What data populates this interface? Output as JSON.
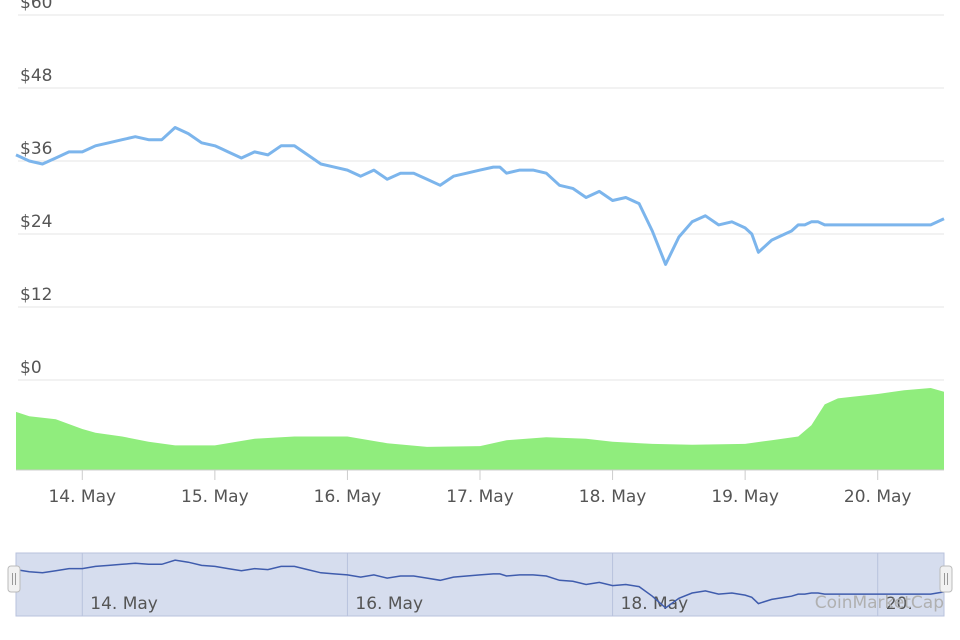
{
  "chart_data": {
    "type": "line",
    "y_axis": {
      "tick_labels": [
        "$60",
        "$48",
        "$36",
        "$24",
        "$12",
        "$0"
      ],
      "ticks": [
        60,
        48,
        36,
        24,
        12,
        0
      ],
      "ylim": [
        0,
        60
      ]
    },
    "x_axis": {
      "tick_labels": [
        "14. May",
        "15. May",
        "16. May",
        "17. May",
        "18. May",
        "19. May",
        "20. May"
      ],
      "ticks": [
        14,
        15,
        16,
        17,
        18,
        19,
        20
      ],
      "xlim": [
        13.5,
        20.5
      ]
    },
    "grid": true,
    "series": [
      {
        "kind": "price-line",
        "color": "#7cb5ec",
        "x": [
          13.5,
          13.6,
          13.7,
          13.8,
          13.9,
          14.0,
          14.1,
          14.2,
          14.3,
          14.4,
          14.5,
          14.6,
          14.7,
          14.8,
          14.9,
          15.0,
          15.05,
          15.1,
          15.2,
          15.3,
          15.4,
          15.5,
          15.6,
          15.7,
          15.8,
          15.9,
          16.0,
          16.1,
          16.2,
          16.3,
          16.4,
          16.5,
          16.6,
          16.7,
          16.8,
          16.9,
          17.0,
          17.1,
          17.15,
          17.2,
          17.3,
          17.4,
          17.5,
          17.6,
          17.7,
          17.8,
          17.9,
          18.0,
          18.1,
          18.2,
          18.3,
          18.4,
          18.5,
          18.6,
          18.7,
          18.8,
          18.9,
          19.0,
          19.05,
          19.1,
          19.2,
          19.3,
          19.35,
          19.4,
          19.45,
          19.5,
          19.55,
          19.6,
          19.65,
          19.7,
          19.75,
          19.8,
          19.85,
          19.9,
          19.95,
          20.0,
          20.05,
          20.1,
          20.2,
          20.3,
          20.4,
          20.5
        ],
        "y": [
          37.0,
          36.0,
          35.5,
          36.5,
          37.5,
          37.5,
          38.5,
          39.0,
          39.5,
          40.0,
          39.5,
          39.5,
          41.5,
          40.5,
          39.0,
          38.5,
          38.0,
          37.5,
          36.5,
          37.5,
          37.0,
          38.5,
          38.5,
          37.0,
          35.5,
          35.0,
          34.5,
          33.5,
          34.5,
          33.0,
          34.0,
          34.0,
          33.0,
          32.0,
          33.5,
          34.0,
          34.5,
          35.0,
          35.0,
          34.0,
          34.5,
          34.5,
          34.0,
          32.0,
          31.5,
          30.0,
          31.0,
          29.5,
          30.0,
          29.0,
          24.5,
          19.0,
          23.5,
          26.0,
          27.0,
          25.5,
          26.0,
          25.0,
          24.0,
          21.0,
          23.0,
          24.0,
          24.5,
          25.5,
          25.5,
          26.0,
          26.0,
          25.5,
          25.5,
          25.5,
          25.5,
          25.5,
          25.5,
          25.5,
          25.5,
          25.5,
          25.5,
          25.5,
          25.5,
          25.5,
          25.5,
          26.5
        ]
      },
      {
        "kind": "volume-area",
        "color": "#90ed7d",
        "x": [
          13.5,
          13.6,
          13.8,
          14.0,
          14.1,
          14.3,
          14.5,
          14.7,
          15.0,
          15.3,
          15.6,
          16.0,
          16.3,
          16.6,
          17.0,
          17.2,
          17.5,
          17.8,
          18.0,
          18.3,
          18.6,
          19.0,
          19.2,
          19.4,
          19.5,
          19.6,
          19.7,
          19.8,
          20.0,
          20.2,
          20.4,
          20.5
        ],
        "y": [
          0.78,
          0.72,
          0.68,
          0.55,
          0.5,
          0.45,
          0.38,
          0.33,
          0.33,
          0.42,
          0.45,
          0.45,
          0.36,
          0.31,
          0.32,
          0.4,
          0.44,
          0.42,
          0.38,
          0.35,
          0.34,
          0.35,
          0.4,
          0.45,
          0.6,
          0.88,
          0.96,
          0.98,
          1.02,
          1.07,
          1.1,
          1.05
        ]
      }
    ],
    "navigator": {
      "tick_labels": [
        "14. May",
        "16. May",
        "18. May",
        "20."
      ],
      "ticks": [
        14,
        16,
        18,
        20
      ]
    }
  },
  "watermark": "CoinMarketCap",
  "colors": {
    "price_line": "#7cb5ec",
    "volume": "#90ed7d",
    "navigator_fill": "#d6ddee",
    "navigator_line": "#3f5cad",
    "grid": "#e6e6e6"
  }
}
